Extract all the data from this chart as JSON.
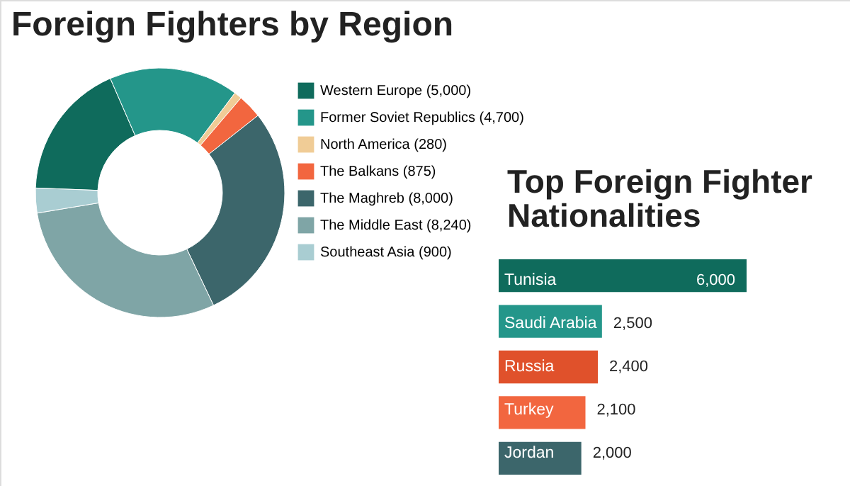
{
  "chart_data": [
    {
      "type": "donut",
      "title": "Foreign Fighters by Region",
      "categories": [
        "Western Europe (5,000)",
        "Former Soviet Republics (4,700)",
        "North America (280)",
        "The Balkans (875)",
        "The Maghreb (8,000)",
        "The Middle East (8,240)",
        "Southeast Asia (900)"
      ],
      "values": [
        5000,
        4700,
        280,
        875,
        8000,
        8240,
        900
      ],
      "colors": [
        "#0f6b5c",
        "#24968a",
        "#f0cc96",
        "#f2663f",
        "#3c666b",
        "#7fa5a6",
        "#a9cdd2"
      ],
      "legend": "right"
    },
    {
      "type": "bar",
      "orientation": "horizontal",
      "title": "Top Foreign Fighter Nationalities",
      "categories": [
        "Tunisia",
        "Saudi Arabia",
        "Russia",
        "Turkey",
        "Jordan"
      ],
      "values": [
        6000,
        2500,
        2400,
        2100,
        2000
      ],
      "colors": [
        "#0f6b5c",
        "#24968a",
        "#e0512b",
        "#f2663f",
        "#3c666b"
      ],
      "value_labels": [
        "6,000",
        "2,500",
        "2,400",
        "2,100",
        "2,000"
      ]
    }
  ]
}
